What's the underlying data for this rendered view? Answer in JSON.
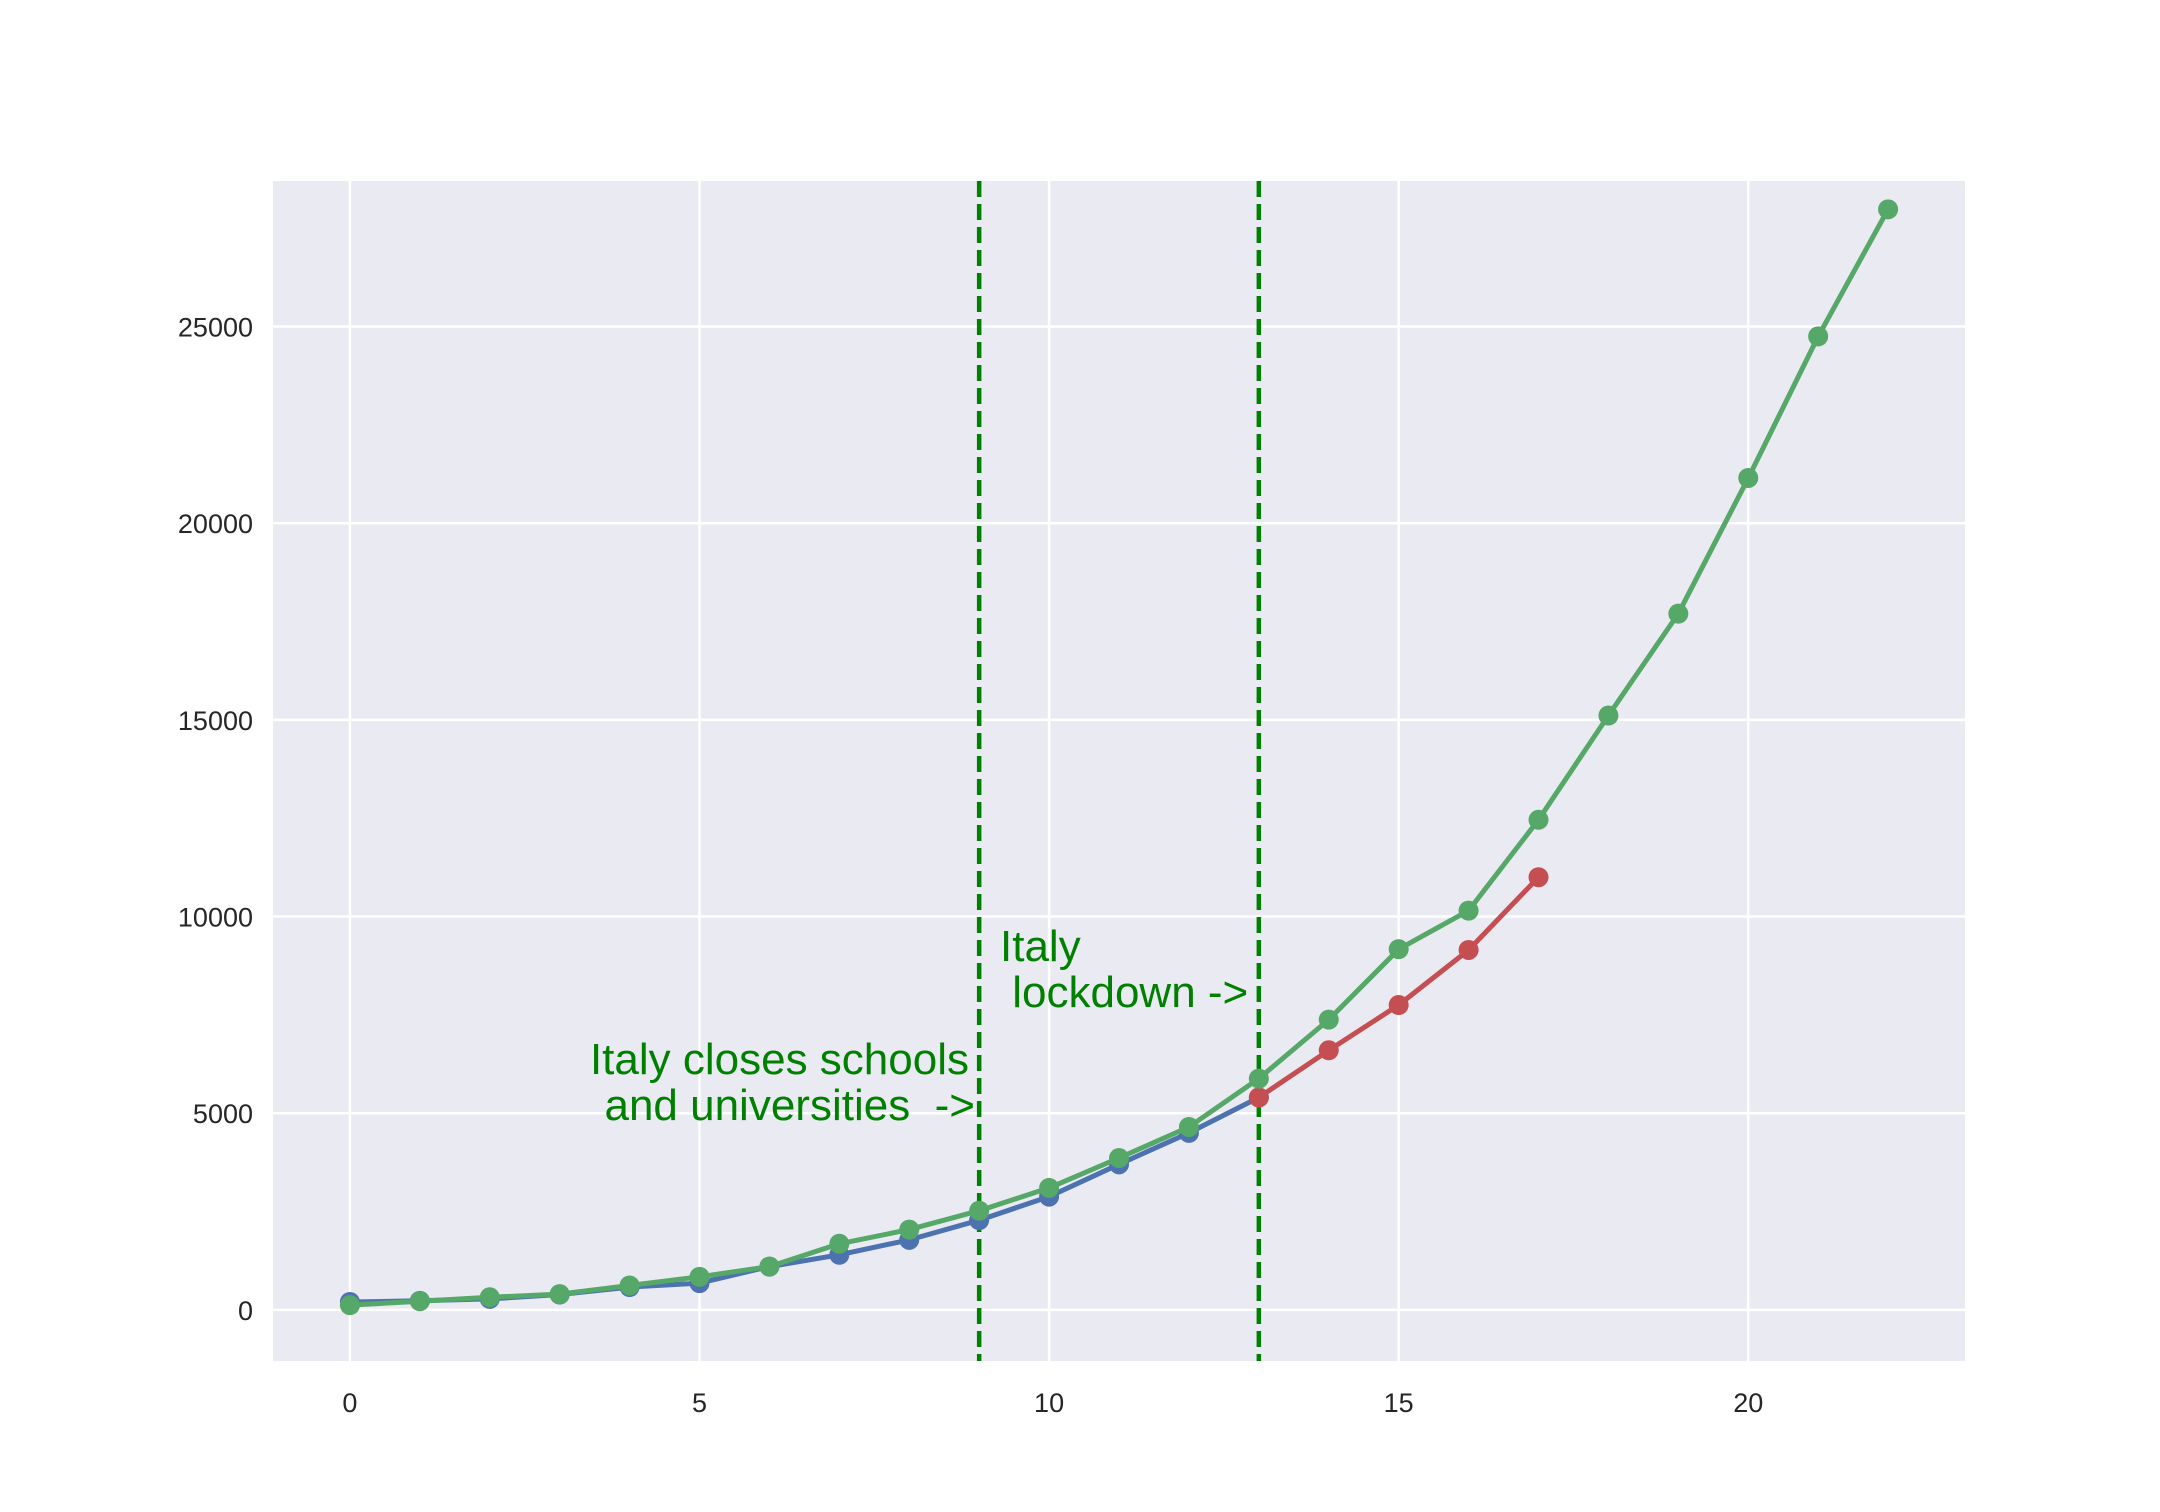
{
  "chart_data": {
    "type": "line",
    "title": "",
    "xlabel": "",
    "ylabel": "",
    "xlim": [
      -1.1,
      23.1
    ],
    "ylim": [
      -1300,
      28700
    ],
    "x_ticks": [
      0,
      5,
      10,
      15,
      20
    ],
    "y_ticks": [
      0,
      5000,
      10000,
      15000,
      20000,
      25000
    ],
    "grid": true,
    "legend": "none",
    "colors": {
      "background": "#eaeaf2",
      "grid": "#ffffff",
      "blue_series": "#4c72b0",
      "green_series": "#55a868",
      "red_series": "#c44e52",
      "annotation": "#008000"
    },
    "series": [
      {
        "color": "#4c72b0",
        "x": [
          0,
          1,
          2,
          3,
          4,
          5,
          6,
          7,
          8,
          9,
          10,
          11,
          12,
          13
        ],
        "y": [
          200,
          230,
          280,
          390,
          580,
          680,
          1100,
          1400,
          1780,
          2280,
          2880,
          3700,
          4500,
          5400
        ]
      },
      {
        "color": "#c44e52",
        "x": [
          13,
          14,
          15,
          16,
          17
        ],
        "y": [
          5400,
          6600,
          7750,
          9150,
          11000
        ]
      },
      {
        "color": "#55a868",
        "x": [
          0,
          1,
          2,
          3,
          4,
          5,
          6,
          7,
          8,
          9,
          10,
          11,
          12,
          13,
          14,
          15,
          16,
          17,
          18,
          19,
          20,
          21,
          22
        ],
        "y": [
          120,
          220,
          320,
          400,
          620,
          840,
          1100,
          1680,
          2040,
          2520,
          3100,
          3860,
          4650,
          5880,
          7380,
          9170,
          10150,
          12460,
          15110,
          17700,
          21150,
          24750,
          27980
        ]
      }
    ],
    "vlines": [
      {
        "x": 9,
        "style": "dashed",
        "color": "#008000"
      },
      {
        "x": 13,
        "style": "dashed",
        "color": "#008000"
      }
    ],
    "annotations": [
      {
        "lines": [
          "Italy closes schools",
          "and universities  ->"
        ],
        "x": 9,
        "y": 5500
      },
      {
        "lines": [
          "Italy",
          " lockdown ->"
        ],
        "x": 13,
        "y": 8500
      }
    ]
  }
}
